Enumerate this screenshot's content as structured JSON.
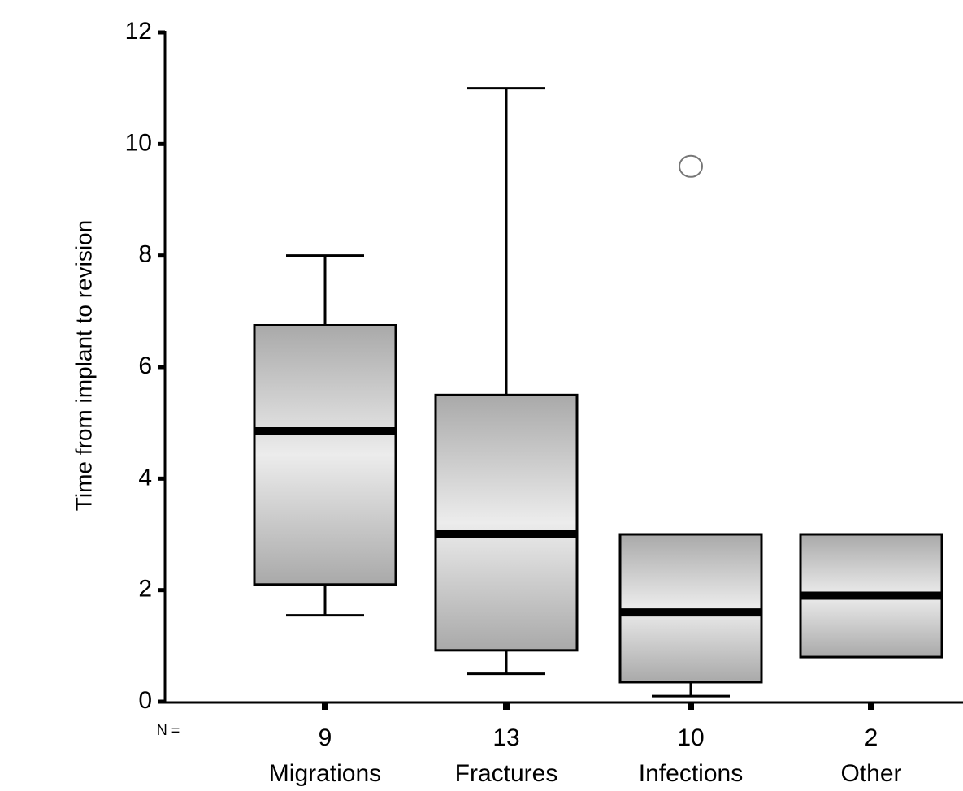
{
  "chart_data": {
    "type": "box",
    "y_label": "Time from implant to  revision",
    "categories": [
      "Migrations",
      "Fractures",
      "Infections",
      "Other"
    ],
    "n_label": "N =",
    "n": [
      9,
      13,
      10,
      2
    ],
    "boxes": [
      {
        "min": 1.55,
        "q1": 2.1,
        "median": 4.85,
        "q3": 6.75,
        "max": 8,
        "outliers": []
      },
      {
        "min": 0.5,
        "q1": 0.92,
        "median": 3.0,
        "q3": 5.5,
        "max": 11,
        "outliers": []
      },
      {
        "min": 0.1,
        "q1": 0.35,
        "median": 1.6,
        "q3": 3.0,
        "max": 3.0,
        "outliers": [
          9.6
        ]
      },
      {
        "min": 0.8,
        "q1": 0.8,
        "median": 1.9,
        "q3": 3.0,
        "max": 3.0,
        "outliers": []
      }
    ],
    "ylim": [
      0,
      12
    ],
    "yticks": [
      0,
      2,
      4,
      6,
      8,
      10,
      12
    ]
  }
}
